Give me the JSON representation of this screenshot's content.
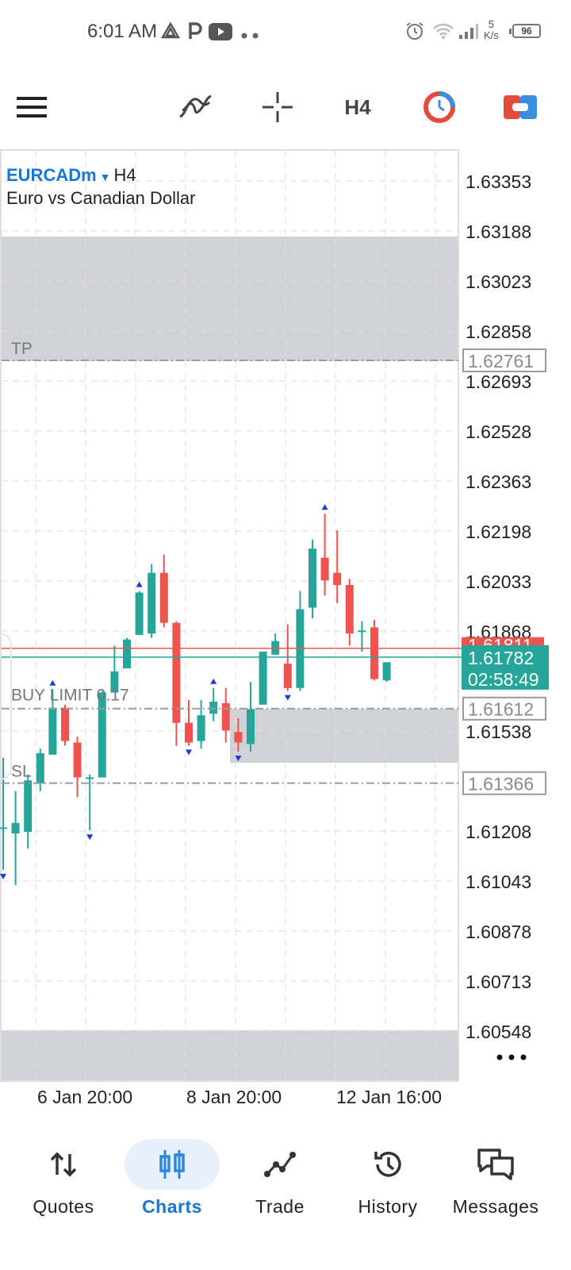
{
  "status_bar": {
    "time": "6:01 AM",
    "speed_value": "5",
    "speed_unit": "K/s",
    "battery": "96",
    "icons": [
      "drive-icon",
      "parking-icon",
      "youtube-icon",
      "more-dots-icon",
      "alarm-icon",
      "wifi-icon",
      "signal-icon"
    ]
  },
  "toolbar": {
    "timeframe": "H4",
    "icons": [
      "menu-icon",
      "indicators-icon",
      "crosshair-icon",
      "timeframe-selector",
      "one-click-trading-icon",
      "trade-toggle-icon"
    ]
  },
  "chart": {
    "symbol": "EURCADm",
    "timeframe": "H4",
    "description": "Euro vs Canadian Dollar",
    "price_levels": [
      "1.63353",
      "1.63188",
      "1.63023",
      "1.62858",
      "1.62693",
      "1.62528",
      "1.62363",
      "1.62198",
      "1.62033",
      "1.61868",
      "1.61538",
      "1.61208",
      "1.61043",
      "1.60878",
      "1.60713",
      "1.60548"
    ],
    "time_labels": [
      "6 Jan 20:00",
      "8 Jan 20:00",
      "12 Jan 16:00"
    ],
    "tp_label": "TP",
    "tp_price": "1.62761",
    "order_label": "BUY LIMIT 0.17",
    "order_price": "1.61612",
    "sl_label": "SL",
    "sl_price": "1.61366",
    "ask_price": "1.61811",
    "bid_price": "1.61782",
    "countdown": "02:58:49",
    "colors": {
      "bull": "#26a69a",
      "bear": "#ef5350",
      "ask_line": "#ef5350",
      "bid_line": "#26a69a",
      "zone": "#cfd3d7",
      "fractal": "#1a3bd6"
    },
    "ohlc": [
      {
        "o": 1.6122,
        "h": 1.6145,
        "l": 1.6108,
        "c": 1.6122
      },
      {
        "o": 1.612,
        "h": 1.6134,
        "l": 1.6103,
        "c": 1.61235
      },
      {
        "o": 1.61205,
        "h": 1.61395,
        "l": 1.6115,
        "c": 1.61375
      },
      {
        "o": 1.61365,
        "h": 1.6148,
        "l": 1.6134,
        "c": 1.61465
      },
      {
        "o": 1.6146,
        "h": 1.61675,
        "l": 1.6146,
        "c": 1.61615
      },
      {
        "o": 1.61615,
        "h": 1.61625,
        "l": 1.6149,
        "c": 1.61505
      },
      {
        "o": 1.615,
        "h": 1.6152,
        "l": 1.6132,
        "c": 1.61385
      },
      {
        "o": 1.61385,
        "h": 1.61395,
        "l": 1.6121,
        "c": 1.61385
      },
      {
        "o": 1.61385,
        "h": 1.6167,
        "l": 1.61385,
        "c": 1.61665
      },
      {
        "o": 1.61665,
        "h": 1.6182,
        "l": 1.61665,
        "c": 1.61735
      },
      {
        "o": 1.61745,
        "h": 1.61845,
        "l": 1.61745,
        "c": 1.6184
      },
      {
        "o": 1.61855,
        "h": 1.62,
        "l": 1.61855,
        "c": 1.61995
      },
      {
        "o": 1.6186,
        "h": 1.6209,
        "l": 1.61845,
        "c": 1.6206
      },
      {
        "o": 1.6206,
        "h": 1.6212,
        "l": 1.6188,
        "c": 1.61895
      },
      {
        "o": 1.61895,
        "h": 1.619,
        "l": 1.6149,
        "c": 1.61565
      },
      {
        "o": 1.61565,
        "h": 1.6164,
        "l": 1.6149,
        "c": 1.615
      },
      {
        "o": 1.61505,
        "h": 1.6164,
        "l": 1.6148,
        "c": 1.6159
      },
      {
        "o": 1.61595,
        "h": 1.6168,
        "l": 1.6157,
        "c": 1.61635
      },
      {
        "o": 1.6163,
        "h": 1.6168,
        "l": 1.615,
        "c": 1.6154
      },
      {
        "o": 1.61535,
        "h": 1.6158,
        "l": 1.6147,
        "c": 1.615
      },
      {
        "o": 1.61495,
        "h": 1.617,
        "l": 1.6147,
        "c": 1.6161
      },
      {
        "o": 1.61625,
        "h": 1.618,
        "l": 1.61625,
        "c": 1.618
      },
      {
        "o": 1.6179,
        "h": 1.6186,
        "l": 1.6179,
        "c": 1.61835
      },
      {
        "o": 1.6176,
        "h": 1.6189,
        "l": 1.6167,
        "c": 1.6168
      },
      {
        "o": 1.6168,
        "h": 1.62,
        "l": 1.6167,
        "c": 1.6194
      },
      {
        "o": 1.61945,
        "h": 1.6217,
        "l": 1.6191,
        "c": 1.6214
      },
      {
        "o": 1.6211,
        "h": 1.62255,
        "l": 1.61985,
        "c": 1.62035
      },
      {
        "o": 1.6206,
        "h": 1.622,
        "l": 1.6196,
        "c": 1.6202
      },
      {
        "o": 1.6202,
        "h": 1.6204,
        "l": 1.6182,
        "c": 1.6186
      },
      {
        "o": 1.6187,
        "h": 1.619,
        "l": 1.618,
        "c": 1.6187
      },
      {
        "o": 1.6188,
        "h": 1.61905,
        "l": 1.61705,
        "c": 1.6171
      },
      {
        "o": 1.61705,
        "h": 1.61765,
        "l": 1.617,
        "c": 1.61765
      }
    ],
    "fractals_up": [
      4,
      11,
      17,
      26
    ],
    "fractals_down": [
      0,
      7,
      15,
      19,
      23
    ]
  },
  "bottom_nav": {
    "items": [
      {
        "label": "Quotes",
        "icon": "quotes-icon",
        "active": false
      },
      {
        "label": "Charts",
        "icon": "charts-icon",
        "active": true
      },
      {
        "label": "Trade",
        "icon": "trade-icon",
        "active": false
      },
      {
        "label": "History",
        "icon": "history-icon",
        "active": false
      },
      {
        "label": "Messages",
        "icon": "messages-icon",
        "active": false
      }
    ]
  }
}
